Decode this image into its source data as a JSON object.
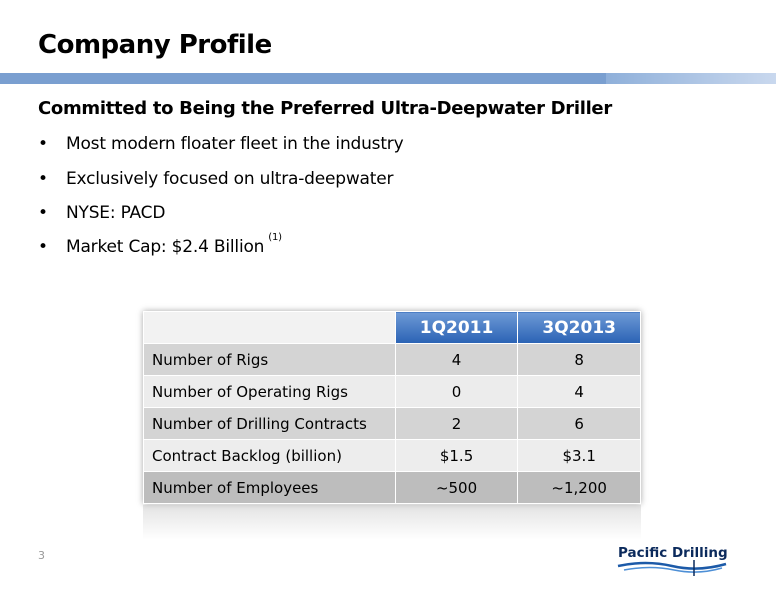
{
  "header": {
    "title": "Company Profile"
  },
  "subtitle": "Committed to Being the Preferred Ultra-Deepwater Driller",
  "bullets": [
    "Most modern floater fleet in the industry",
    "Exclusively focused on ultra-deepwater",
    "NYSE: PACD",
    "Market Cap: $2.4 Billion"
  ],
  "footnote_marker": "(1)",
  "table": {
    "columns": [
      "1Q2011",
      "3Q2013"
    ],
    "rows": [
      [
        "Number of Rigs",
        "4",
        "8"
      ],
      [
        "Number of Operating Rigs",
        "0",
        "4"
      ],
      [
        "Number of Drilling Contracts",
        "2",
        "6"
      ],
      [
        "Contract Backlog (billion)",
        "$1.5",
        "$3.1"
      ],
      [
        "Number of Employees",
        "~500",
        "~1,200"
      ]
    ]
  },
  "page_number": "3",
  "logo": "Pacific Drilling"
}
